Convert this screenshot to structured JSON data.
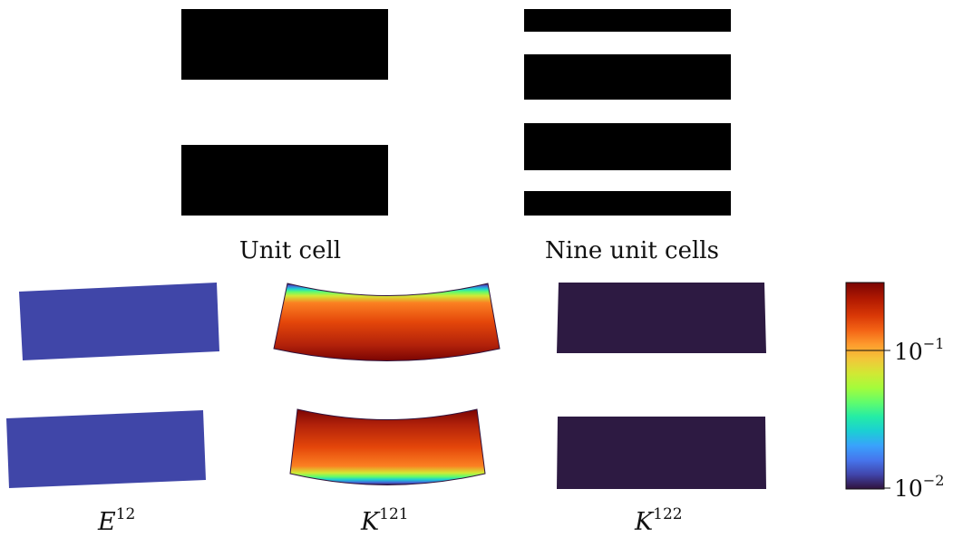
{
  "captions": {
    "unit_cell": "Unit cell",
    "nine_unit_cells": "Nine unit cells"
  },
  "fields": [
    {
      "base": "E",
      "sup": "12"
    },
    {
      "base": "K",
      "sup": "121"
    },
    {
      "base": "K",
      "sup": "122"
    }
  ],
  "colorbar": {
    "tick_top": {
      "base": "10",
      "exp": "−1"
    },
    "tick_bottom": {
      "base": "10",
      "exp": "−2"
    },
    "colormap": "turbo",
    "scale": "log"
  },
  "colors": {
    "material": "#000000",
    "e12_fill": "#4046a8",
    "k122_fill": "#2d1a42"
  }
}
